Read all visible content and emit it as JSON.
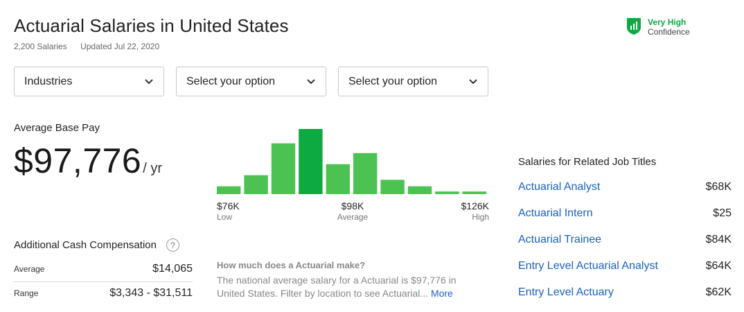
{
  "header": {
    "title": "Actuarial Salaries in United States",
    "salaries_count": "2,200 Salaries",
    "updated": "Updated Jul 22, 2020",
    "confidence_level": "Very High",
    "confidence_label": "Confidence",
    "confidence_icon": "shield-bar-chart-icon",
    "confidence_color": "#0caa41"
  },
  "filters": [
    {
      "label": "Industries",
      "icon": "chevron-down-icon"
    },
    {
      "label": "Select your option",
      "icon": "chevron-down-icon"
    },
    {
      "label": "Select your option",
      "icon": "chevron-down-icon"
    }
  ],
  "base_pay": {
    "label": "Average Base Pay",
    "amount": "$97,776",
    "unit": "/ yr"
  },
  "chart_data": {
    "type": "bar",
    "values": [
      0.12,
      0.29,
      0.78,
      1.0,
      0.46,
      0.63,
      0.22,
      0.12,
      0.04,
      0.04
    ],
    "highlight_index": 3,
    "bar_color": "#4cc252",
    "highlight_color": "#0caa41",
    "x_labels": [
      {
        "value": "$76K",
        "sub": "Low"
      },
      {
        "value": "$98K",
        "sub": "Average"
      },
      {
        "value": "$126K",
        "sub": "High"
      }
    ]
  },
  "additional_cash": {
    "label": "Additional Cash Compensation",
    "help_icon": "question-circle-icon",
    "rows": [
      {
        "key": "Average",
        "value": "$14,065"
      },
      {
        "key": "Range",
        "value": "$3,343 - $31,511"
      }
    ]
  },
  "how_much": {
    "question": "How much does a Actuarial make?",
    "answer": "The national average salary for a Actuarial is $97,776 in United States. Filter by location to see Actuarial...",
    "more_label": "More"
  },
  "related": {
    "title": "Salaries for Related Job Titles",
    "items": [
      {
        "title": "Actuarial Analyst",
        "salary": "$68K"
      },
      {
        "title": "Actuarial Intern",
        "salary": "$25"
      },
      {
        "title": "Actuarial Trainee",
        "salary": "$84K"
      },
      {
        "title": "Entry Level Actuarial Analyst",
        "salary": "$64K"
      },
      {
        "title": "Entry Level Actuary",
        "salary": "$62K"
      }
    ]
  }
}
